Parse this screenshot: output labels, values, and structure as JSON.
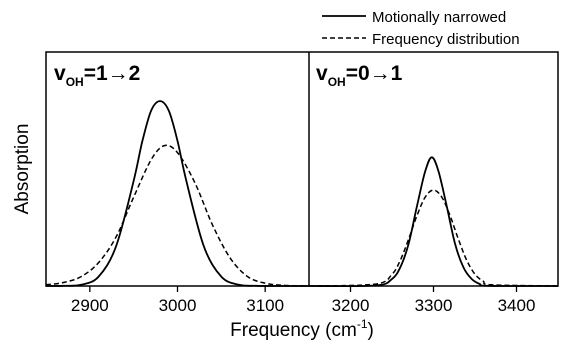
{
  "chart_data": {
    "type": "line",
    "xlabel": "Frequency (cm",
    "xlabel_superscript": "-1",
    "xlabel_suffix": ")",
    "ylabel": "Absorption",
    "legend": {
      "placement": "top-right",
      "entries": [
        {
          "label": "Motionally narrowed",
          "style": "solid"
        },
        {
          "label": "Frequency distribution",
          "style": "dashed"
        }
      ]
    },
    "panels": [
      {
        "label_base": "v",
        "label_sub": "OH",
        "label_rest": "=1→2",
        "xlim": [
          2850,
          3150
        ],
        "ylim": [
          0,
          1.0
        ],
        "xticks": [
          2900,
          3000,
          3100
        ],
        "xtick_labels": [
          "2900",
          "3000",
          "3100"
        ],
        "series": [
          {
            "name": "Motionally narrowed",
            "style": "solid",
            "x": [
              2850,
              2870,
              2890,
              2910,
              2930,
              2950,
              2960,
              2970,
              2980,
              2990,
              3000,
              3010,
              3030,
              3050,
              3070,
              3090,
              3110,
              3150
            ],
            "y": [
              0.0,
              0.001,
              0.005,
              0.04,
              0.17,
              0.45,
              0.62,
              0.75,
              0.79,
              0.75,
              0.62,
              0.45,
              0.17,
              0.04,
              0.005,
              0.001,
              0.0,
              0.0
            ]
          },
          {
            "name": "Frequency distribution",
            "style": "dashed",
            "x": [
              2850,
              2870,
              2890,
              2910,
              2930,
              2950,
              2970,
              2985,
              3000,
              3020,
              3040,
              3060,
              3080,
              3100,
              3120,
              3150
            ],
            "y": [
              0.005,
              0.015,
              0.04,
              0.1,
              0.21,
              0.38,
              0.54,
              0.6,
              0.57,
              0.44,
              0.26,
              0.12,
              0.04,
              0.012,
              0.003,
              0.0
            ]
          }
        ]
      },
      {
        "label_base": "v",
        "label_sub": "OH",
        "label_rest": "=0→1",
        "xlim": [
          3150,
          3450
        ],
        "ylim": [
          0,
          1.0
        ],
        "xticks": [
          3200,
          3300,
          3400
        ],
        "xtick_labels": [
          "3200",
          "3300",
          "3400"
        ],
        "series": [
          {
            "name": "Motionally narrowed",
            "style": "solid",
            "x": [
              3150,
              3230,
              3250,
              3260,
              3270,
              3280,
              3290,
              3298,
              3306,
              3316,
              3326,
              3336,
              3346,
              3356,
              3366,
              3450
            ],
            "y": [
              0.0,
              0.002,
              0.03,
              0.08,
              0.18,
              0.34,
              0.49,
              0.55,
              0.49,
              0.34,
              0.18,
              0.08,
              0.03,
              0.008,
              0.001,
              0.0
            ]
          },
          {
            "name": "Frequency distribution",
            "style": "dashed",
            "x": [
              3150,
              3230,
              3250,
              3260,
              3270,
              3280,
              3290,
              3300,
              3310,
              3320,
              3330,
              3340,
              3350,
              3360,
              3370,
              3450
            ],
            "y": [
              0.0,
              0.008,
              0.05,
              0.11,
              0.2,
              0.3,
              0.38,
              0.41,
              0.38,
              0.3,
              0.2,
              0.11,
              0.05,
              0.02,
              0.005,
              0.0
            ]
          }
        ]
      }
    ]
  }
}
